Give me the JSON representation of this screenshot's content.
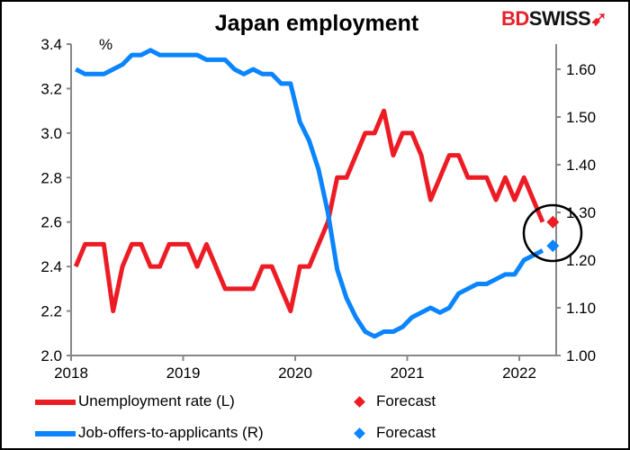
{
  "chart_data": {
    "type": "line",
    "title": "Japan employment",
    "left_unit_label": "%",
    "start_month": "2018-01",
    "x_tick_labels": [
      "2018",
      "2019",
      "2020",
      "2021",
      "2022"
    ],
    "left_axis": {
      "ylim": [
        2.0,
        3.4
      ],
      "ticks": [
        "2.0",
        "2.2",
        "2.4",
        "2.6",
        "2.8",
        "3.0",
        "3.2",
        "3.4"
      ]
    },
    "right_axis": {
      "ylim": [
        1.0,
        1.65
      ],
      "ticks": [
        "1.00",
        "1.10",
        "1.20",
        "1.30",
        "1.40",
        "1.50",
        "1.60"
      ]
    },
    "grid": false,
    "legend_placement": "bottom",
    "series": [
      {
        "name": "Unemployment rate (L)",
        "axis": "left",
        "color": "#ed1c24",
        "values": [
          2.4,
          2.5,
          2.5,
          2.5,
          2.2,
          2.4,
          2.5,
          2.5,
          2.4,
          2.4,
          2.5,
          2.5,
          2.5,
          2.4,
          2.5,
          2.4,
          2.3,
          2.3,
          2.3,
          2.3,
          2.4,
          2.4,
          2.3,
          2.2,
          2.4,
          2.4,
          2.5,
          2.6,
          2.8,
          2.8,
          2.9,
          3.0,
          3.0,
          3.1,
          2.9,
          3.0,
          3.0,
          2.9,
          2.7,
          2.8,
          2.9,
          2.9,
          2.8,
          2.8,
          2.8,
          2.7,
          2.8,
          2.7,
          2.8,
          2.7,
          2.6
        ],
        "forecast": {
          "name": "Forecast",
          "month": "2022-04",
          "value": 2.6
        }
      },
      {
        "name": "Job-offers-to-applicants (R)",
        "axis": "right",
        "color": "#0a84ff",
        "values": [
          1.6,
          1.59,
          1.59,
          1.59,
          1.6,
          1.61,
          1.63,
          1.63,
          1.64,
          1.63,
          1.63,
          1.63,
          1.63,
          1.63,
          1.62,
          1.62,
          1.62,
          1.6,
          1.59,
          1.6,
          1.59,
          1.59,
          1.57,
          1.57,
          1.49,
          1.45,
          1.39,
          1.3,
          1.18,
          1.12,
          1.08,
          1.05,
          1.04,
          1.05,
          1.05,
          1.06,
          1.08,
          1.09,
          1.1,
          1.09,
          1.1,
          1.13,
          1.14,
          1.15,
          1.15,
          1.16,
          1.17,
          1.17,
          1.2,
          1.21,
          1.22
        ],
        "forecast": {
          "name": "Forecast",
          "month": "2022-04",
          "value": 1.23
        }
      }
    ],
    "annotation": "circle around forecasts"
  },
  "logo": {
    "part1": "BD",
    "part2": "SWISS"
  }
}
